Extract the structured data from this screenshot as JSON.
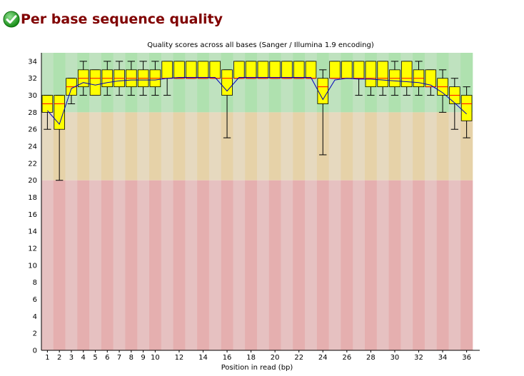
{
  "header": {
    "title": "Per base sequence quality",
    "status_icon": "check-circle-icon",
    "status_color": "#22a022"
  },
  "chart_data": {
    "type": "box",
    "title": "Quality scores across all bases (Sanger / Illumina 1.9 encoding)",
    "xlabel": "Position in read (bp)",
    "ylabel": "",
    "ylim": [
      0,
      35
    ],
    "yticks": [
      0,
      2,
      4,
      6,
      8,
      10,
      12,
      14,
      16,
      18,
      20,
      22,
      24,
      26,
      28,
      30,
      32,
      34
    ],
    "xtick_labels": [
      "1",
      "2",
      "3",
      "4",
      "5",
      "6",
      "7",
      "8",
      "9",
      "10",
      "12",
      "14",
      "16",
      "18",
      "20",
      "22",
      "24",
      "26",
      "28",
      "30",
      "32",
      "34",
      "36"
    ],
    "xtick_positions": [
      1,
      2,
      3,
      4,
      5,
      6,
      7,
      8,
      9,
      10,
      12,
      14,
      16,
      18,
      20,
      22,
      24,
      26,
      28,
      30,
      32,
      34,
      36
    ],
    "positions": [
      1,
      2,
      3,
      4,
      5,
      6,
      7,
      8,
      9,
      10,
      11,
      12,
      13,
      14,
      15,
      16,
      17,
      18,
      19,
      20,
      21,
      22,
      23,
      24,
      25,
      26,
      27,
      28,
      29,
      30,
      31,
      32,
      33,
      34,
      35,
      36
    ],
    "whisker_low": [
      26,
      20,
      29,
      30,
      30,
      30,
      30,
      30,
      30,
      30,
      30,
      32,
      32,
      32,
      32,
      25,
      32,
      32,
      32,
      32,
      32,
      32,
      32,
      23,
      32,
      32,
      30,
      30,
      30,
      30,
      30,
      30,
      30,
      28,
      26,
      25
    ],
    "q1": [
      28,
      26,
      30,
      31,
      30,
      31,
      31,
      31,
      31,
      31,
      32,
      32,
      32,
      32,
      32,
      30,
      32,
      32,
      32,
      32,
      32,
      32,
      32,
      29,
      32,
      32,
      32,
      31,
      31,
      31,
      31,
      31,
      31,
      30,
      29,
      27
    ],
    "median": [
      29,
      29,
      31,
      32,
      32,
      32,
      32,
      32,
      32,
      32,
      32,
      32,
      32,
      32,
      32,
      32,
      32,
      32,
      32,
      32,
      32,
      32,
      32,
      31,
      32,
      32,
      32,
      32,
      32,
      32,
      32,
      32,
      31,
      31,
      30,
      29
    ],
    "q3": [
      30,
      30,
      32,
      33,
      33,
      33,
      33,
      33,
      33,
      33,
      34,
      34,
      34,
      34,
      34,
      33,
      34,
      34,
      34,
      34,
      34,
      34,
      34,
      32,
      34,
      34,
      34,
      34,
      34,
      33,
      34,
      33,
      33,
      32,
      31,
      30
    ],
    "whisker_high": [
      30,
      30,
      32,
      34,
      33,
      34,
      34,
      34,
      34,
      34,
      34,
      34,
      34,
      34,
      34,
      33,
      34,
      34,
      34,
      34,
      34,
      34,
      34,
      33,
      34,
      34,
      34,
      34,
      34,
      34,
      34,
      34,
      33,
      33,
      32,
      31
    ],
    "mean": [
      28.2,
      26.6,
      30.8,
      31.5,
      31.2,
      31.5,
      31.7,
      31.8,
      31.8,
      31.8,
      32.0,
      32.1,
      32.1,
      32.1,
      32.1,
      30.5,
      32.1,
      32.1,
      32.1,
      32.1,
      32.1,
      32.1,
      32.1,
      29.5,
      31.8,
      32.0,
      31.9,
      31.9,
      31.8,
      31.7,
      31.6,
      31.5,
      31.2,
      30.3,
      29.1,
      27.8
    ],
    "zones": [
      {
        "from": 28,
        "to": 35,
        "color": "good"
      },
      {
        "from": 20,
        "to": 28,
        "color": "ok"
      },
      {
        "from": 0,
        "to": 20,
        "color": "poor"
      }
    ],
    "colors": {
      "good_a": "#bfe2bf",
      "good_b": "#afe1af",
      "ok_a": "#e6d9bf",
      "ok_b": "#e6d2a8",
      "poor_a": "#e6c1c1",
      "poor_b": "#e5afaf",
      "box": "#ffff00",
      "box_edge": "#000000",
      "median": "#ff0000",
      "mean": "#0000bb"
    }
  }
}
